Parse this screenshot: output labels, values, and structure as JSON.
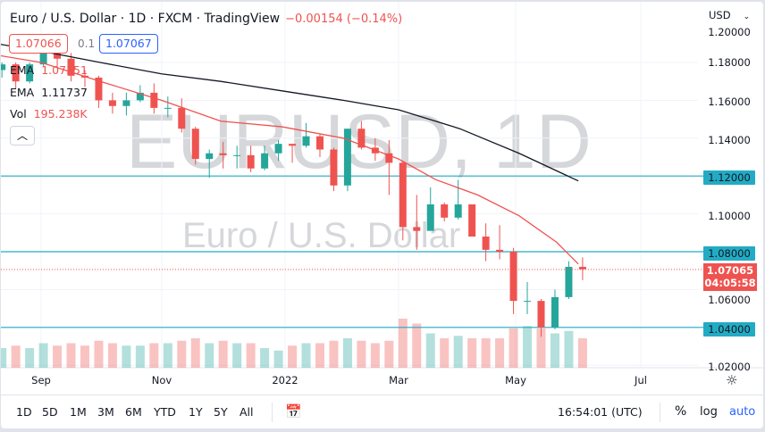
{
  "header": {
    "title": "Euro / U.S. Dollar · 1D · FXCM · TradingView",
    "change": "−0.00154 (−0.14%)"
  },
  "quote": {
    "bid": "1.07066",
    "spread": "0.1",
    "ask": "1.07067"
  },
  "indicators": [
    {
      "label": "EMA",
      "value": "1.07351",
      "color": "#ef5350"
    },
    {
      "label": "EMA",
      "value": "1.11737",
      "color": "#131722"
    }
  ],
  "volume": {
    "label": "Vol",
    "value": "195.238K"
  },
  "watermark": {
    "symbol": "EURUSD, 1D",
    "name": "Euro / U.S. Dollar"
  },
  "price_axis": {
    "currency": "USD",
    "ticks": [
      "1.20000",
      "1.18000",
      "1.16000",
      "1.14000",
      "1.12000",
      "1.10000",
      "1.08000",
      "1.06000",
      "1.04000",
      "1.02000"
    ]
  },
  "last_price": {
    "value": "1.07065",
    "countdown": "04:05:58",
    "color": "#ef5350"
  },
  "time_axis": [
    "Sep",
    "Nov",
    "2022",
    "Mar",
    "May",
    "Jul"
  ],
  "toolbar": {
    "ranges": [
      "1D",
      "5D",
      "1M",
      "3M",
      "6M",
      "YTD",
      "1Y",
      "5Y",
      "All"
    ],
    "clock": "16:54:01 (UTC)",
    "percent": "%",
    "log": "log",
    "auto": "auto"
  },
  "colors": {
    "up": "#26a69a",
    "down": "#ef5350",
    "level_line": "#22abc4",
    "ema_fast": "#ef5350",
    "ema_slow": "#131722"
  },
  "chart_data": {
    "type": "candlestick",
    "symbol": "EURUSD",
    "interval": "1D",
    "ylim": [
      1.015,
      1.2
    ],
    "horizontal_levels": [
      "1.12000",
      "1.08000",
      "1.04000"
    ],
    "candles_weekly_approx": [
      [
        "2021-08-09",
        1.176,
        1.18,
        1.172,
        1.179
      ],
      [
        "2021-08-16",
        1.179,
        1.18,
        1.166,
        1.17
      ],
      [
        "2021-08-23",
        1.17,
        1.18,
        1.169,
        1.179
      ],
      [
        "2021-08-30",
        1.179,
        1.191,
        1.178,
        1.187
      ],
      [
        "2021-09-06",
        1.187,
        1.188,
        1.177,
        1.182
      ],
      [
        "2021-09-13",
        1.182,
        1.185,
        1.17,
        1.173
      ],
      [
        "2021-09-20",
        1.173,
        1.176,
        1.167,
        1.172
      ],
      [
        "2021-09-27",
        1.172,
        1.173,
        1.156,
        1.16
      ],
      [
        "2021-10-04",
        1.16,
        1.164,
        1.153,
        1.157
      ],
      [
        "2021-10-11",
        1.157,
        1.164,
        1.152,
        1.16
      ],
      [
        "2021-10-18",
        1.16,
        1.168,
        1.159,
        1.164
      ],
      [
        "2021-10-25",
        1.164,
        1.169,
        1.153,
        1.156
      ],
      [
        "2021-11-01",
        1.156,
        1.162,
        1.151,
        1.156
      ],
      [
        "2021-11-08",
        1.156,
        1.161,
        1.143,
        1.145
      ],
      [
        "2021-11-15",
        1.145,
        1.146,
        1.126,
        1.129
      ],
      [
        "2021-11-22",
        1.129,
        1.134,
        1.119,
        1.132
      ],
      [
        "2021-11-29",
        1.132,
        1.138,
        1.124,
        1.131
      ],
      [
        "2021-12-06",
        1.131,
        1.136,
        1.124,
        1.131
      ],
      [
        "2021-12-13",
        1.131,
        1.136,
        1.122,
        1.124
      ],
      [
        "2021-12-20",
        1.124,
        1.136,
        1.123,
        1.132
      ],
      [
        "2021-12-27",
        1.132,
        1.139,
        1.128,
        1.137
      ],
      [
        "2022-01-03",
        1.137,
        1.137,
        1.127,
        1.136
      ],
      [
        "2022-01-10",
        1.136,
        1.148,
        1.135,
        1.141
      ],
      [
        "2022-01-17",
        1.141,
        1.142,
        1.13,
        1.134
      ],
      [
        "2022-01-24",
        1.134,
        1.135,
        1.112,
        1.115
      ],
      [
        "2022-01-31",
        1.115,
        1.145,
        1.112,
        1.145
      ],
      [
        "2022-02-07",
        1.145,
        1.149,
        1.134,
        1.135
      ],
      [
        "2022-02-14",
        1.135,
        1.14,
        1.128,
        1.132
      ],
      [
        "2022-02-21",
        1.132,
        1.139,
        1.11,
        1.127
      ],
      [
        "2022-02-28",
        1.127,
        1.128,
        1.086,
        1.093
      ],
      [
        "2022-03-07",
        1.093,
        1.11,
        1.081,
        1.091
      ],
      [
        "2022-03-14",
        1.091,
        1.114,
        1.093,
        1.105
      ],
      [
        "2022-03-21",
        1.105,
        1.106,
        1.096,
        1.098
      ],
      [
        "2022-03-28",
        1.098,
        1.118,
        1.097,
        1.105
      ],
      [
        "2022-04-04",
        1.105,
        1.105,
        1.088,
        1.088
      ],
      [
        "2022-04-11",
        1.088,
        1.095,
        1.075,
        1.081
      ],
      [
        "2022-04-18",
        1.081,
        1.094,
        1.076,
        1.08
      ],
      [
        "2022-04-25",
        1.08,
        1.082,
        1.047,
        1.054
      ],
      [
        "2022-05-02",
        1.054,
        1.064,
        1.047,
        1.054
      ],
      [
        "2022-05-09",
        1.054,
        1.055,
        1.035,
        1.04
      ],
      [
        "2022-05-16",
        1.04,
        1.06,
        1.039,
        1.056
      ],
      [
        "2022-05-23",
        1.056,
        1.075,
        1.055,
        1.072
      ],
      [
        "2022-05-30",
        1.072,
        1.077,
        1.065,
        1.0707
      ]
    ],
    "volume_relative": [
      0.4,
      0.45,
      0.4,
      0.5,
      0.45,
      0.5,
      0.45,
      0.55,
      0.5,
      0.45,
      0.45,
      0.5,
      0.5,
      0.55,
      0.6,
      0.5,
      0.55,
      0.5,
      0.5,
      0.4,
      0.35,
      0.45,
      0.5,
      0.5,
      0.55,
      0.6,
      0.55,
      0.5,
      0.55,
      1.0,
      0.9,
      0.7,
      0.6,
      0.65,
      0.6,
      0.6,
      0.6,
      0.8,
      0.85,
      0.8,
      0.7,
      0.75,
      0.6
    ],
    "ema_fast": [
      [
        "2021-08-09",
        1.184
      ],
      [
        "2021-09-01",
        1.18
      ],
      [
        "2021-10-01",
        1.17
      ],
      [
        "2021-11-01",
        1.16
      ],
      [
        "2021-12-01",
        1.149
      ],
      [
        "2022-01-01",
        1.146
      ],
      [
        "2022-02-01",
        1.14
      ],
      [
        "2022-03-01",
        1.129
      ],
      [
        "2022-03-20",
        1.118
      ],
      [
        "2022-04-10",
        1.11
      ],
      [
        "2022-05-01",
        1.099
      ],
      [
        "2022-05-20",
        1.085
      ],
      [
        "2022-05-31",
        1.0735
      ]
    ],
    "ema_slow": [
      [
        "2021-08-09",
        1.19
      ],
      [
        "2021-09-01",
        1.186
      ],
      [
        "2021-10-01",
        1.18
      ],
      [
        "2021-11-01",
        1.174
      ],
      [
        "2021-12-01",
        1.17
      ],
      [
        "2022-01-01",
        1.165
      ],
      [
        "2022-02-01",
        1.16
      ],
      [
        "2022-03-01",
        1.155
      ],
      [
        "2022-04-01",
        1.145
      ],
      [
        "2022-05-01",
        1.132
      ],
      [
        "2022-05-31",
        1.1174
      ]
    ]
  }
}
